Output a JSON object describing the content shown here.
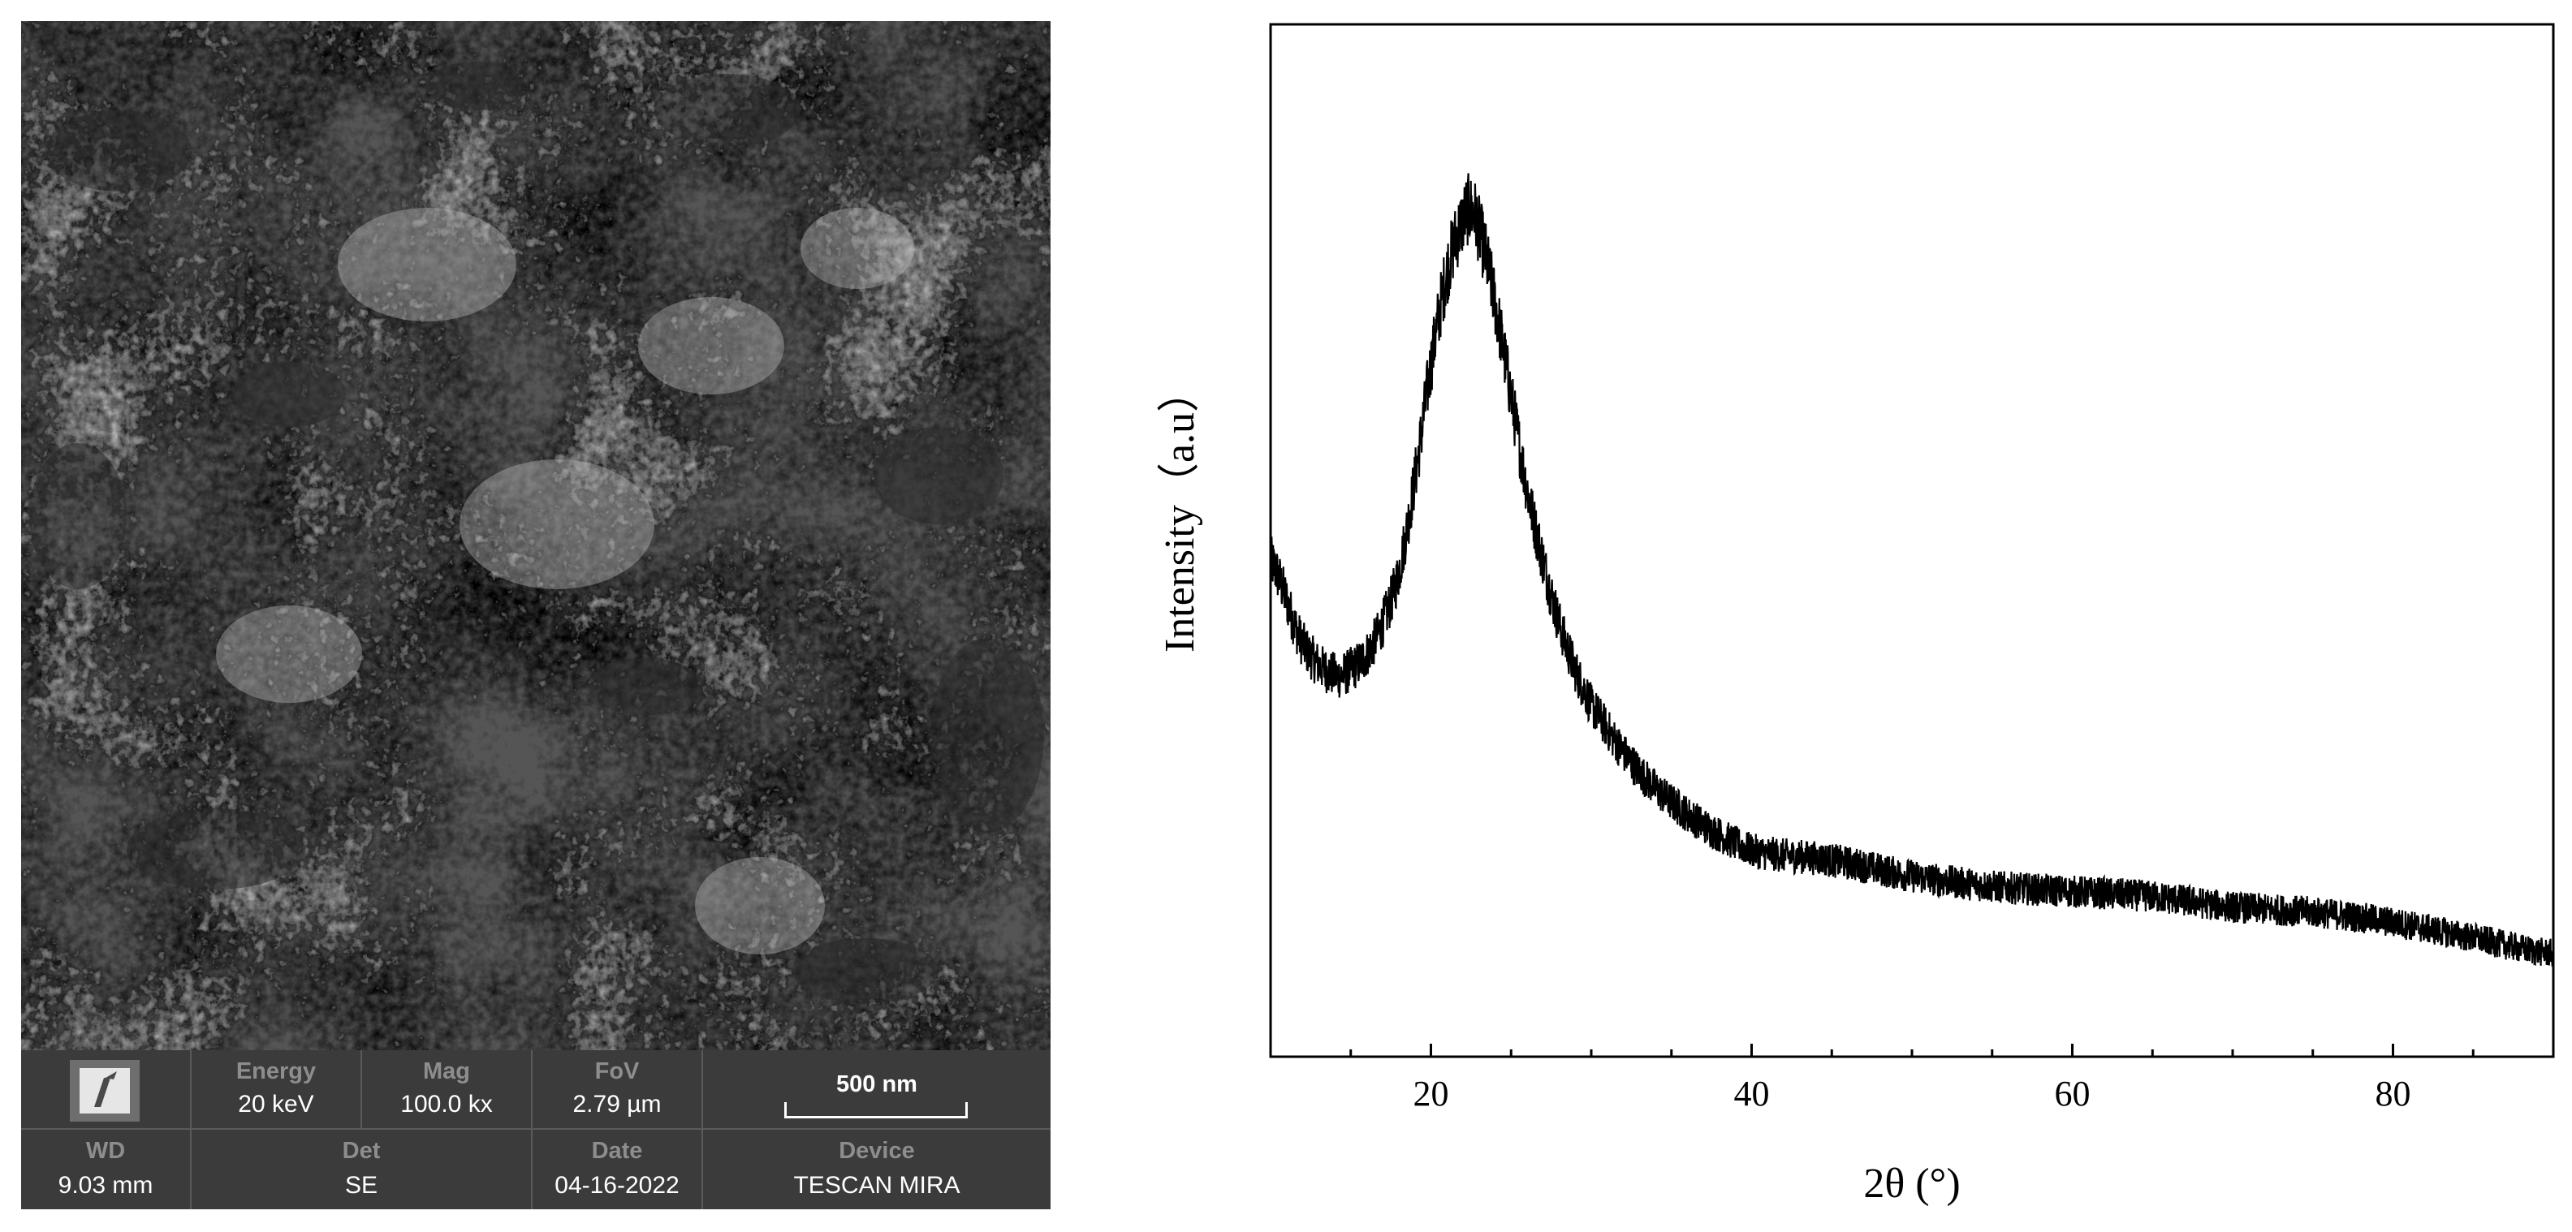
{
  "sem": {
    "info_bar": {
      "energy_label": "Energy",
      "energy_value": "20 keV",
      "mag_label": "Mag",
      "mag_value": "100.0 kx",
      "fov_label": "FoV",
      "fov_value": "2.79 µm",
      "scale_bar": "500 nm",
      "wd_label": "WD",
      "wd_value": "9.03 mm",
      "det_label": "Det",
      "det_value": "SE",
      "date_label": "Date",
      "date_value": "04-16-2022",
      "device_label": "Device",
      "device_value": "TESCAN MIRA"
    }
  },
  "chart_data": {
    "type": "line",
    "title": "",
    "xlabel": "2θ (°)",
    "ylabel": "Intensity（a.u）",
    "xlim": [
      10,
      90
    ],
    "ylim": [
      0,
      100
    ],
    "x_ticks": [
      20,
      40,
      60,
      80
    ],
    "y_ticks_labeled": false,
    "grid": false,
    "legend": "none",
    "line_color": "#000000",
    "series": [
      {
        "x": [
          10,
          12,
          14,
          15,
          16,
          17,
          18,
          19,
          20,
          21,
          22,
          22.5,
          23,
          24,
          25,
          26,
          27,
          28,
          29,
          30,
          32,
          34,
          36,
          38,
          40,
          42,
          45,
          50,
          55,
          60,
          65,
          70,
          75,
          80,
          85,
          90
        ],
        "values": [
          48,
          40,
          37,
          37.5,
          39,
          42,
          47,
          56,
          67,
          76,
          81,
          82,
          80,
          73,
          64,
          55,
          48,
          42,
          37.5,
          34,
          29.5,
          26,
          23.5,
          21.5,
          20,
          19.5,
          19,
          17.5,
          16.5,
          16,
          15.5,
          14.5,
          14,
          13,
          11.5,
          10
        ]
      }
    ]
  }
}
